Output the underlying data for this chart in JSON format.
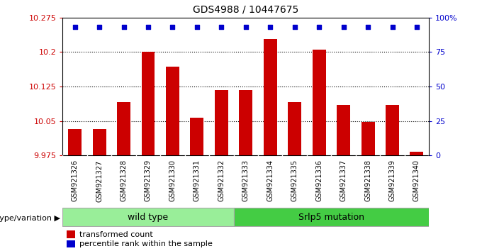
{
  "title": "GDS4988 / 10447675",
  "samples": [
    "GSM921326",
    "GSM921327",
    "GSM921328",
    "GSM921329",
    "GSM921330",
    "GSM921331",
    "GSM921332",
    "GSM921333",
    "GSM921334",
    "GSM921335",
    "GSM921336",
    "GSM921337",
    "GSM921338",
    "GSM921339",
    "GSM921340"
  ],
  "transformed_counts": [
    10.032,
    10.032,
    10.092,
    10.2,
    10.168,
    10.057,
    10.118,
    10.118,
    10.228,
    10.092,
    10.205,
    10.085,
    10.048,
    10.085,
    9.983
  ],
  "percentile_ranks": [
    93,
    93,
    93,
    93,
    93,
    93,
    93,
    93,
    93,
    93,
    93,
    93,
    93,
    93,
    93
  ],
  "bar_color": "#cc0000",
  "dot_color": "#0000cc",
  "ylim_left": [
    9.975,
    10.275
  ],
  "ylim_right": [
    0,
    100
  ],
  "yticks_left": [
    9.975,
    10.05,
    10.125,
    10.2,
    10.275
  ],
  "yticks_right": [
    0,
    25,
    50,
    75,
    100
  ],
  "ytick_labels_left": [
    "9.975",
    "10.05",
    "10.125",
    "10.2",
    "10.275"
  ],
  "ytick_labels_right": [
    "0",
    "25",
    "50",
    "75",
    "100%"
  ],
  "hlines": [
    10.05,
    10.125,
    10.2
  ],
  "wild_type_count": 7,
  "mutation_count": 8,
  "wild_type_label": "wild type",
  "mutation_label": "Srlp5 mutation",
  "genotype_label": "genotype/variation",
  "legend_bar_label": "transformed count",
  "legend_dot_label": "percentile rank within the sample",
  "wild_type_color": "#99ee99",
  "mutation_color": "#44cc44",
  "tick_label_color": "#cc0000",
  "right_tick_color": "#0000cc",
  "background_color": "#ffffff",
  "xtick_bg_color": "#cccccc",
  "bar_bottom": 9.975,
  "bar_width": 0.55
}
